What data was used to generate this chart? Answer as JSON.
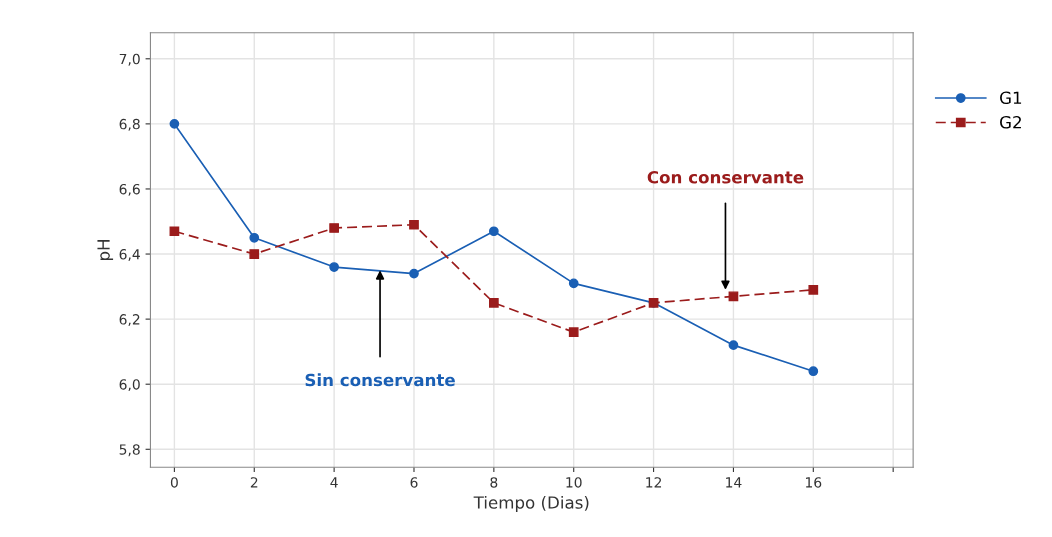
{
  "chart_data": {
    "type": "line",
    "xlabel": "Tiempo (Dias)",
    "ylabel": "pH",
    "x": [
      0,
      2,
      4,
      6,
      8,
      10,
      12,
      14,
      16
    ],
    "series": [
      {
        "name": "G1",
        "color": "#1a5fb4",
        "marker": "circle",
        "line_style": "solid",
        "values": [
          6.8,
          6.45,
          6.36,
          6.34,
          6.47,
          6.31,
          6.25,
          6.12,
          6.04
        ]
      },
      {
        "name": "G2",
        "color": "#9b1c1c",
        "marker": "square",
        "line_style": "dashed",
        "values": [
          6.47,
          6.4,
          6.48,
          6.49,
          6.25,
          6.16,
          6.25,
          6.27,
          6.29
        ]
      }
    ],
    "xlim": [
      -0.6,
      18.5
    ],
    "xticks": [
      0,
      2,
      4,
      6,
      8,
      10,
      12,
      14,
      16,
      {
        "value": 18,
        "label": null
      }
    ],
    "ylim": [
      5.745,
      7.08
    ],
    "yticks": [
      {
        "value": 5.8,
        "label": "5,8"
      },
      {
        "value": 6.0,
        "label": "6,0"
      },
      {
        "value": 6.2,
        "label": "6,2"
      },
      {
        "value": 6.4,
        "label": "6,4"
      },
      {
        "value": 6.6,
        "label": "6,6"
      },
      {
        "value": 6.8,
        "label": "6,8"
      },
      {
        "value": 7.0,
        "label": "7,0"
      }
    ],
    "annotations": [
      {
        "text": "Sin conservante",
        "x": 5.15,
        "y": 6.35
      },
      {
        "text": "Con conservante",
        "x": 13.8,
        "y": 6.29
      }
    ],
    "grid": true,
    "legend": "right"
  }
}
